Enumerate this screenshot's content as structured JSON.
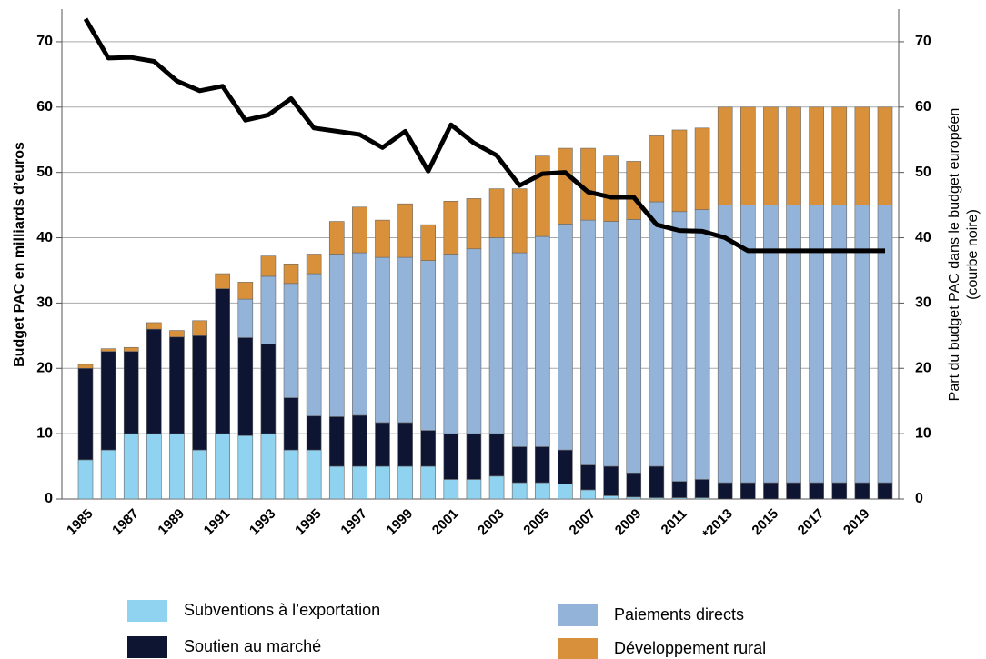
{
  "chart_data": {
    "type": "bar",
    "stacked": true,
    "ylabel": "Budget PAC en milliards d’euros",
    "y2label": [
      "Part du budget PAC dans le budget européen",
      "(courbe noire)"
    ],
    "categories": [
      "1985",
      null,
      "1987",
      null,
      "1989",
      null,
      "1991",
      null,
      "1993",
      null,
      "1995",
      null,
      "1997",
      null,
      "1999",
      null,
      "2001",
      null,
      "2003",
      null,
      "2005",
      null,
      "2007",
      null,
      "2009",
      null,
      "2011",
      null,
      "*2013",
      null,
      "2015",
      null,
      "2017",
      null,
      "2019",
      null
    ],
    "series": [
      {
        "name": "Subventions à l’exportation",
        "color": "#8fd3f0",
        "values": [
          6,
          7.5,
          10,
          10,
          10,
          7.5,
          10,
          9.7,
          10,
          7.5,
          7.5,
          5,
          5,
          5,
          5,
          5,
          3,
          3,
          3.5,
          2.5,
          2.5,
          2.3,
          1.4,
          0.5,
          0.3,
          0.2,
          0.2,
          0.2,
          0,
          0,
          0,
          0,
          0,
          0,
          0,
          0
        ]
      },
      {
        "name": "Soutien au marché",
        "color": "#0d1533",
        "values": [
          14,
          15.1,
          12.6,
          16,
          14.8,
          17.5,
          22.2,
          15,
          13.7,
          8,
          5.2,
          7.6,
          7.8,
          6.7,
          6.7,
          5.5,
          7,
          7,
          6.5,
          5.5,
          5.5,
          5.2,
          3.8,
          4.5,
          3.7,
          4.8,
          2.5,
          2.8,
          2.5,
          2.5,
          2.5,
          2.5,
          2.5,
          2.5,
          2.5,
          2.5
        ]
      },
      {
        "name": "Paiements directs",
        "color": "#94b3d9",
        "values": [
          0,
          0,
          0,
          0,
          0,
          0,
          0,
          5.9,
          10.4,
          17.5,
          21.8,
          24.9,
          24.9,
          25.3,
          25.3,
          26,
          27.5,
          28.3,
          30,
          29.7,
          32.2,
          34.6,
          37.5,
          37.5,
          38.8,
          40.5,
          41.3,
          41.3,
          42.5,
          42.5,
          42.5,
          42.5,
          42.5,
          42.5,
          42.5,
          42.5
        ]
      },
      {
        "name": "Développement rural",
        "color": "#d9903a",
        "values": [
          0.6,
          0.4,
          0.6,
          1,
          1,
          2.3,
          2.3,
          2.6,
          3.1,
          3,
          3,
          5,
          7,
          5.7,
          8.2,
          5.5,
          8.1,
          7.7,
          7.5,
          9.8,
          12.3,
          11.6,
          11,
          10,
          8.9,
          10.1,
          12.5,
          12.5,
          15,
          15,
          15,
          15,
          15,
          15,
          15,
          15
        ]
      },
      {
        "axis": "y2",
        "color": "#000000",
        "values": [
          73.5,
          67.5,
          67.6,
          67,
          64,
          62.5,
          63.2,
          58,
          58.8,
          61.3,
          56.8,
          56.3,
          55.8,
          53.8,
          56.3,
          50.2,
          57.3,
          54.5,
          52.6,
          48,
          49.8,
          50,
          47,
          46.2,
          46.2,
          42,
          41.1,
          41,
          40,
          38,
          38,
          38,
          38,
          38,
          38,
          38
        ]
      }
    ],
    "ylim": [
      0,
      75
    ],
    "yticks": [
      0,
      10,
      20,
      30,
      40,
      50,
      60,
      70
    ],
    "y2lim": [
      0,
      75
    ],
    "y2ticks": [
      0,
      10,
      20,
      30,
      40,
      50,
      60,
      70
    ],
    "grid": true
  }
}
